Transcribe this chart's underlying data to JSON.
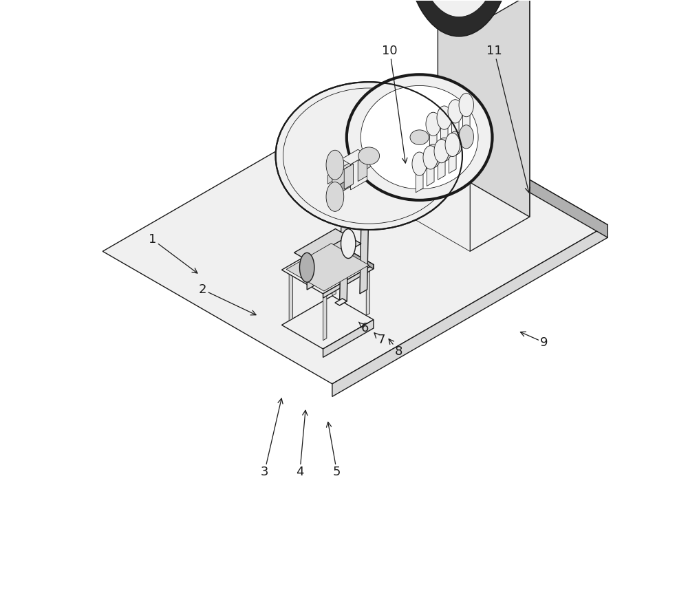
{
  "background_color": "#ffffff",
  "line_color": "#1a1a1a",
  "fill_white": "#ffffff",
  "fill_light": "#f0f0f0",
  "fill_medium": "#d8d8d8",
  "fill_dark": "#b0b0b0",
  "fill_black": "#2a2a2a",
  "figsize": [
    10.0,
    8.59
  ],
  "dpi": 100,
  "label_positions": {
    "1": {
      "text": [
        0.175,
        0.595
      ],
      "point": [
        0.255,
        0.535
      ]
    },
    "2": {
      "text": [
        0.26,
        0.51
      ],
      "point": [
        0.355,
        0.465
      ]
    },
    "3": {
      "text": [
        0.365,
        0.2
      ],
      "point": [
        0.395,
        0.33
      ]
    },
    "4": {
      "text": [
        0.425,
        0.2
      ],
      "point": [
        0.435,
        0.31
      ]
    },
    "5": {
      "text": [
        0.488,
        0.2
      ],
      "point": [
        0.472,
        0.29
      ]
    },
    "6": {
      "text": [
        0.535,
        0.445
      ],
      "point": [
        0.525,
        0.455
      ]
    },
    "7": {
      "text": [
        0.563,
        0.425
      ],
      "point": [
        0.548,
        0.44
      ]
    },
    "8": {
      "text": [
        0.593,
        0.405
      ],
      "point": [
        0.573,
        0.43
      ]
    },
    "9": {
      "text": [
        0.84,
        0.42
      ],
      "point": [
        0.795,
        0.44
      ]
    },
    "10": {
      "text": [
        0.578,
        0.915
      ],
      "point": [
        0.605,
        0.72
      ]
    },
    "11": {
      "text": [
        0.755,
        0.915
      ],
      "point": [
        0.815,
        0.67
      ]
    }
  }
}
